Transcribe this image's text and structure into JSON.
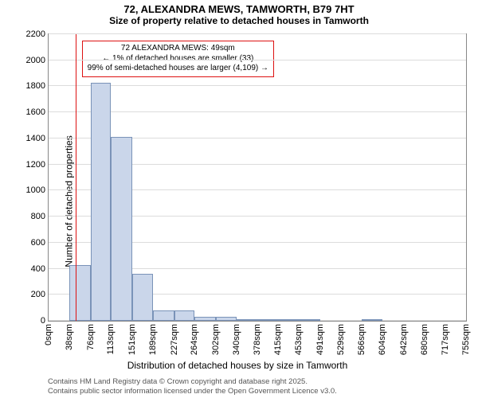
{
  "title": {
    "line1": "72, ALEXANDRA MEWS, TAMWORTH, B79 7HT",
    "line2": "Size of property relative to detached houses in Tamworth"
  },
  "axes": {
    "xlabel": "Distribution of detached houses by size in Tamworth",
    "ylabel": "Number of detached properties",
    "ylim": [
      0,
      2200
    ],
    "yticks": [
      0,
      200,
      400,
      600,
      800,
      1000,
      1200,
      1400,
      1600,
      1800,
      2000,
      2200
    ],
    "xtick_labels": [
      "0sqm",
      "38sqm",
      "76sqm",
      "113sqm",
      "151sqm",
      "189sqm",
      "227sqm",
      "264sqm",
      "302sqm",
      "340sqm",
      "378sqm",
      "415sqm",
      "453sqm",
      "491sqm",
      "529sqm",
      "566sqm",
      "604sqm",
      "642sqm",
      "680sqm",
      "717sqm",
      "755sqm"
    ],
    "xtick_values": [
      0,
      38,
      76,
      113,
      151,
      189,
      227,
      264,
      302,
      340,
      378,
      415,
      453,
      491,
      529,
      566,
      604,
      642,
      680,
      717,
      755
    ],
    "label_fontsize": 12,
    "tick_fontsize": 11
  },
  "histogram": {
    "type": "histogram",
    "bin_edges": [
      0,
      38,
      76,
      113,
      151,
      189,
      227,
      264,
      302,
      340,
      378,
      415,
      453,
      491,
      529,
      566,
      604,
      642,
      680,
      717,
      755
    ],
    "counts": [
      0,
      430,
      1830,
      1410,
      360,
      80,
      82,
      30,
      30,
      5,
      5,
      5,
      3,
      0,
      0,
      3,
      0,
      0,
      0,
      0
    ],
    "bar_fill": "#cad6ea",
    "bar_border": "#7a93b8",
    "background": "#ffffff",
    "grid_color": "#dcdcdc",
    "axis_color": "#888888"
  },
  "marker": {
    "x_value": 49,
    "color": "#dd1111",
    "callout_lines": [
      "72 ALEXANDRA MEWS: 49sqm",
      "← 1% of detached houses are smaller (33)",
      "99% of semi-detached houses are larger (4,109) →"
    ],
    "callout_top_y": 2150,
    "callout_left_x": 60
  },
  "footer": {
    "line1": "Contains HM Land Registry data © Crown copyright and database right 2025.",
    "line2": "Contains public sector information licensed under the Open Government Licence v3.0."
  }
}
